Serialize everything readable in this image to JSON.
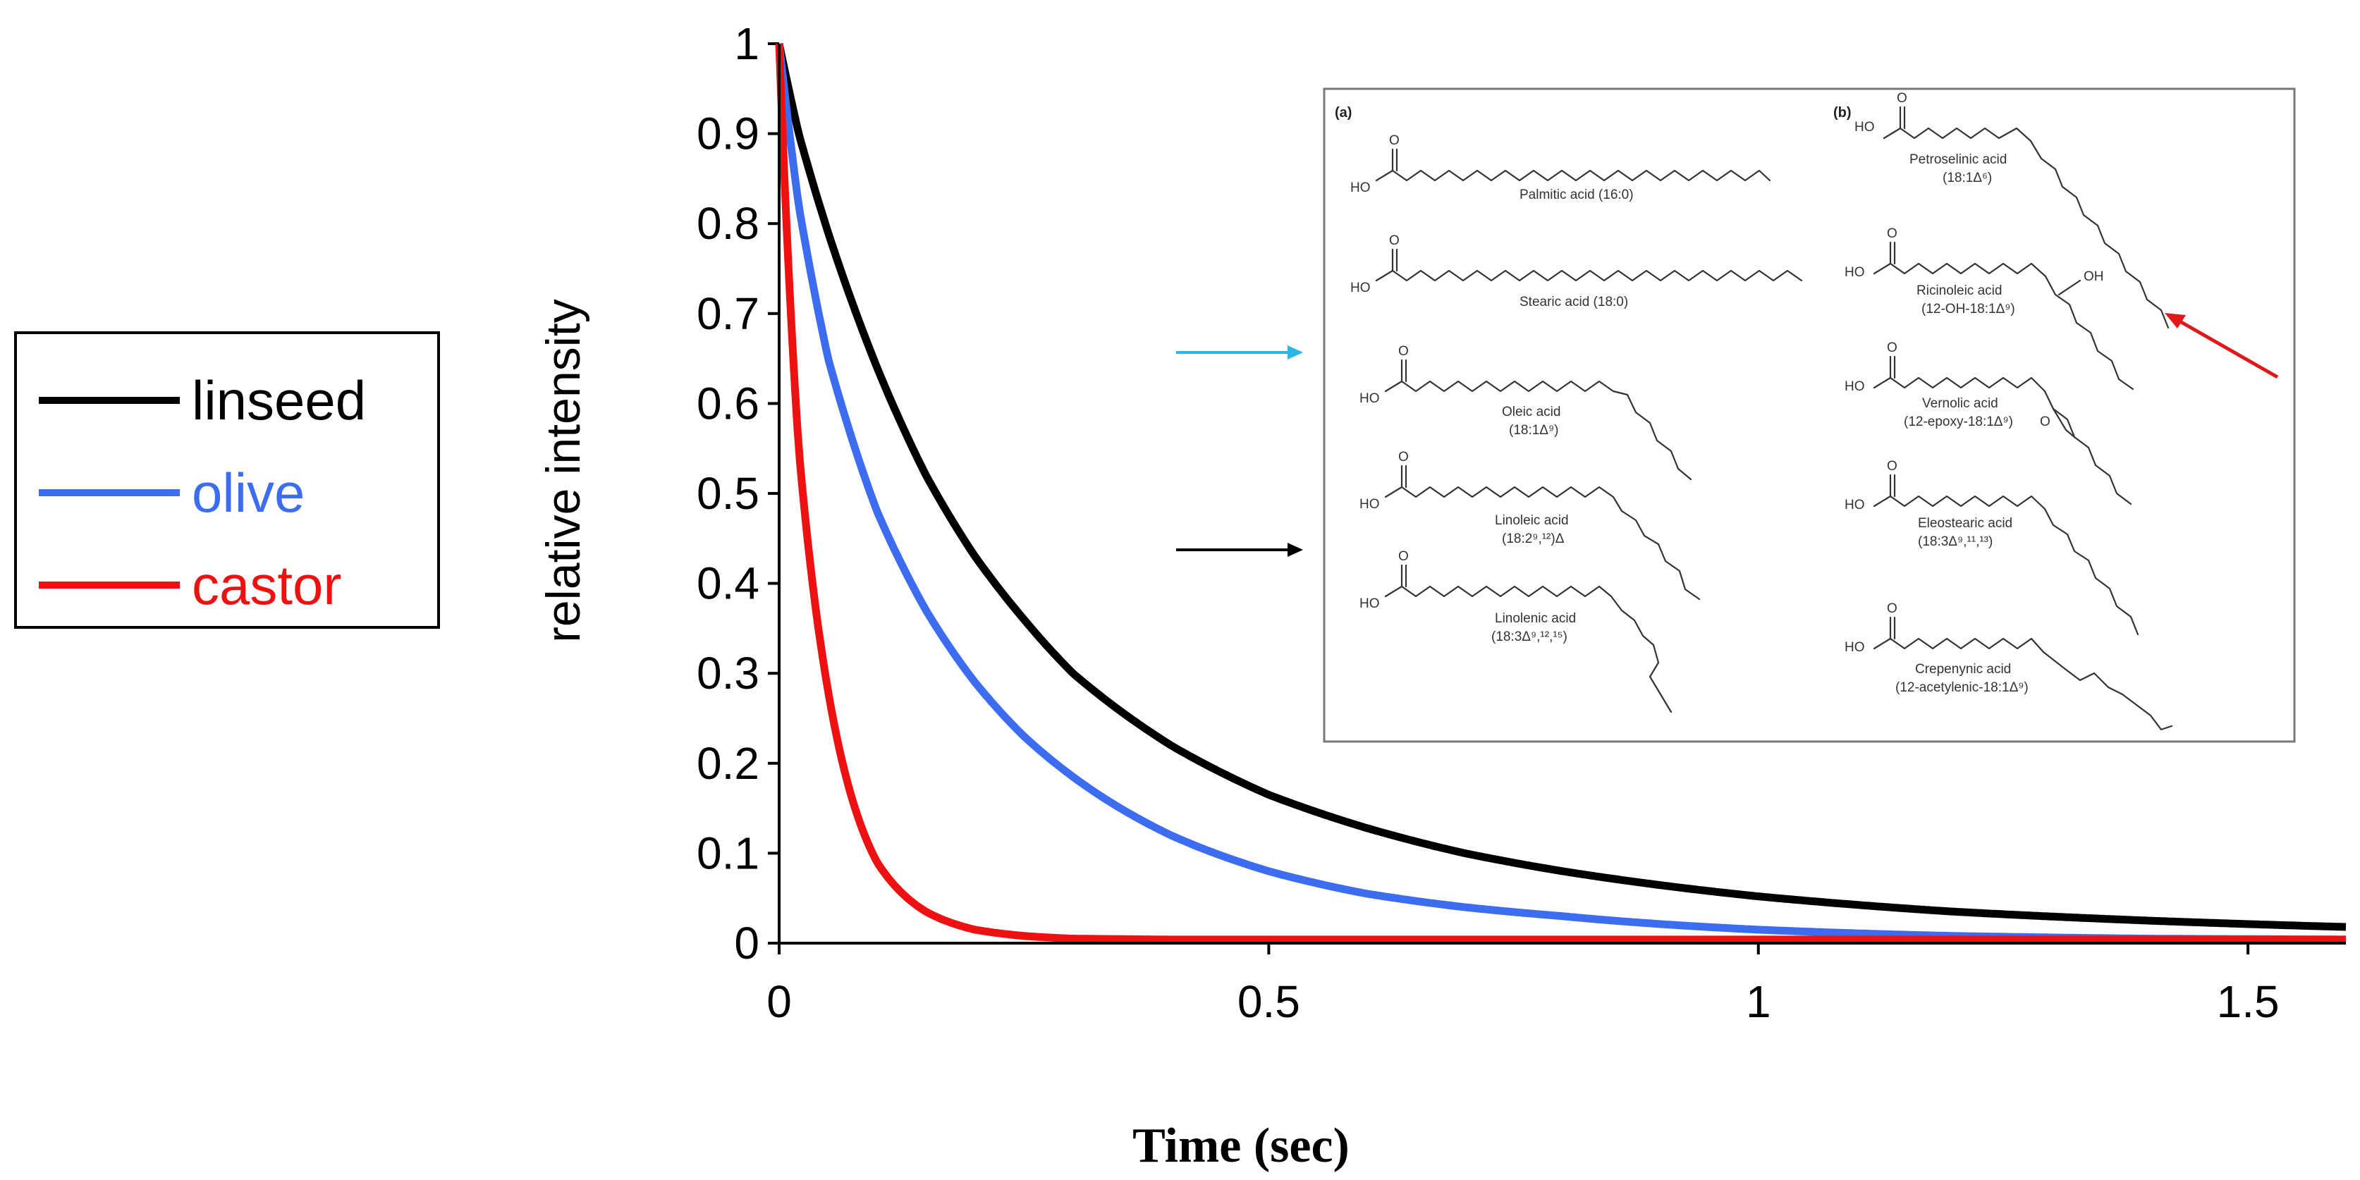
{
  "chart_data": {
    "type": "line",
    "title": "",
    "xlabel": "Time (sec)",
    "ylabel": "relative intensity",
    "xlim": [
      0,
      1.6
    ],
    "ylim": [
      0,
      1
    ],
    "x_ticks": [
      "0",
      "0.5",
      "1",
      "1.5"
    ],
    "x_tick_values": [
      0,
      0.5,
      1,
      1.5
    ],
    "y_ticks": [
      "0",
      "0.1",
      "0.2",
      "0.3",
      "0.4",
      "0.5",
      "0.6",
      "0.7",
      "0.8",
      "0.9",
      "1"
    ],
    "y_tick_values": [
      0,
      0.1,
      0.2,
      0.3,
      0.4,
      0.5,
      0.6,
      0.7,
      0.8,
      0.9,
      1
    ],
    "grid": false,
    "legend_position": "left",
    "x": [
      0,
      0.02,
      0.05,
      0.1,
      0.15,
      0.2,
      0.25,
      0.3,
      0.4,
      0.5,
      0.6,
      0.7,
      0.8,
      1.0,
      1.2,
      1.4,
      1.6
    ],
    "series": [
      {
        "name": "linseed",
        "color": "#000000",
        "values": [
          1.0,
          0.9,
          0.79,
          0.64,
          0.52,
          0.43,
          0.36,
          0.3,
          0.22,
          0.165,
          0.128,
          0.1,
          0.08,
          0.052,
          0.035,
          0.025,
          0.018
        ]
      },
      {
        "name": "olive",
        "color": "#3c6cf0",
        "values": [
          1.0,
          0.82,
          0.65,
          0.48,
          0.37,
          0.29,
          0.23,
          0.185,
          0.12,
          0.08,
          0.055,
          0.04,
          0.03,
          0.015,
          0.008,
          0.005,
          0.004
        ]
      },
      {
        "name": "castor",
        "color": "#ee1111",
        "values": [
          1.0,
          0.55,
          0.28,
          0.09,
          0.035,
          0.015,
          0.008,
          0.005,
          0.004,
          0.004,
          0.004,
          0.004,
          0.004,
          0.004,
          0.004,
          0.004,
          0.004
        ]
      }
    ],
    "inset": {
      "panel_a_label": "(a)",
      "panel_b_label": "(b)",
      "ho_label": "HO",
      "o_label": "O",
      "oh_label": "OH",
      "panel_a": [
        {
          "name": "Palmitic acid (16:0)",
          "sub": ""
        },
        {
          "name": "Stearic acid (18:0)",
          "sub": ""
        },
        {
          "name": "Oleic acid",
          "sub": "(18:1Δ⁹)"
        },
        {
          "name": "Linoleic acid",
          "sub": "(18:2⁹,¹²)Δ"
        },
        {
          "name": "Linolenic acid",
          "sub": "(18:3Δ⁹,¹²,¹⁵)"
        }
      ],
      "panel_b": [
        {
          "name": "Petroselinic acid",
          "sub": "(18:1Δ⁶)"
        },
        {
          "name": "Ricinoleic acid",
          "sub": "(12-OH-18:1Δ⁹)"
        },
        {
          "name": "Vernolic acid",
          "sub": "(12-epoxy-18:1Δ⁹)"
        },
        {
          "name": "Eleostearic acid",
          "sub": "(18:3Δ⁹,¹¹,¹³)"
        },
        {
          "name": "Crepenynic acid",
          "sub": "(12-acetylenic-18:1Δ⁹)"
        }
      ],
      "arrow_colors": {
        "cyan": "#29b6e8",
        "black": "#000000",
        "red": "#e01818"
      }
    }
  }
}
